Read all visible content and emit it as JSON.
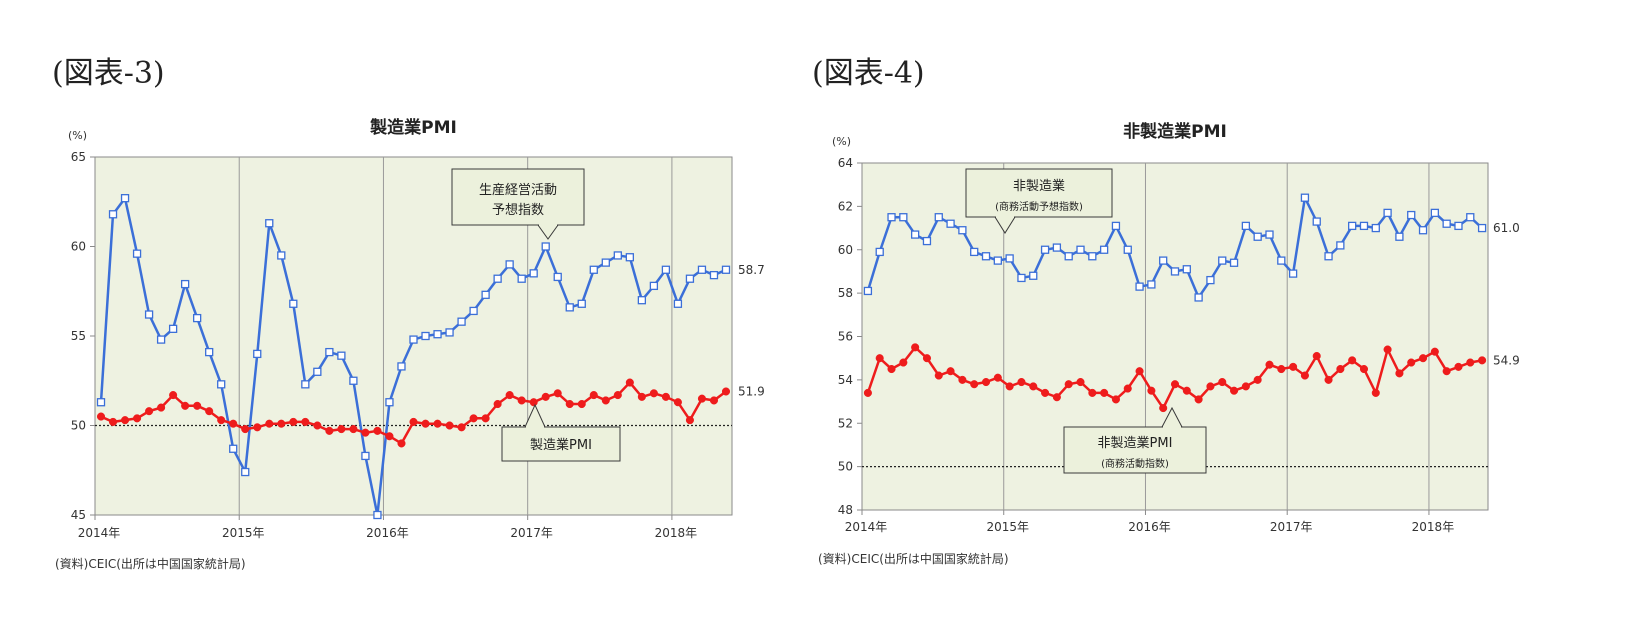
{
  "figures": [
    {
      "label": "(図表-3)",
      "source": "(資料)CEIC(出所は中国国家統計局)",
      "unit": "(%)",
      "end_labels": [
        "58.7",
        "51.9"
      ],
      "callouts": [
        [
          "生産経営活動",
          "予想指数"
        ],
        [
          "製造業PMI"
        ]
      ]
    },
    {
      "label": "(図表-4)",
      "source": "(資料)CEIC(出所は中国国家統計局)",
      "unit": "(%)",
      "end_labels": [
        "61.0",
        "54.9"
      ],
      "callouts": [
        [
          "非製造業",
          "(商務活動予想指数)"
        ],
        [
          "非製造業PMI",
          "(商務活動指数)"
        ]
      ]
    }
  ],
  "chart_data": [
    {
      "type": "line",
      "title": "製造業PMI",
      "ylim": [
        45,
        65
      ],
      "yticks": [
        45,
        50,
        55,
        60,
        65
      ],
      "x_start": "2014-01",
      "x_tick_labels": [
        "2014年",
        "2015年",
        "2016年",
        "2017年",
        "2018年"
      ],
      "reference_line": 50,
      "grid": "vertical lines at each January",
      "series": [
        {
          "name": "生産経営活動予想指数",
          "color": "#3b6fd8",
          "marker": "square",
          "values": [
            51.3,
            61.8,
            62.7,
            59.6,
            56.2,
            54.8,
            55.4,
            57.9,
            56.0,
            54.1,
            52.3,
            48.7,
            47.4,
            54.0,
            61.3,
            59.5,
            56.8,
            52.3,
            53.0,
            54.1,
            53.9,
            52.5,
            48.3,
            44.8,
            51.3,
            53.3,
            54.8,
            55.0,
            55.1,
            55.2,
            55.8,
            56.4,
            57.3,
            58.2,
            59.0,
            58.2,
            58.5,
            60.0,
            58.3,
            56.6,
            56.8,
            58.7,
            59.1,
            59.5,
            59.4,
            57.0,
            57.8,
            58.7,
            56.8,
            58.2,
            58.7,
            58.4,
            58.7
          ]
        },
        {
          "name": "製造業PMI",
          "color": "#ee1c1c",
          "marker": "circle",
          "values": [
            50.5,
            50.2,
            50.3,
            50.4,
            50.8,
            51.0,
            51.7,
            51.1,
            51.1,
            50.8,
            50.3,
            50.1,
            49.8,
            49.9,
            50.1,
            50.1,
            50.2,
            50.2,
            50.0,
            49.7,
            49.8,
            49.8,
            49.6,
            49.7,
            49.4,
            49.0,
            50.2,
            50.1,
            50.1,
            50.0,
            49.9,
            50.4,
            50.4,
            51.2,
            51.7,
            51.4,
            51.3,
            51.6,
            51.8,
            51.2,
            51.2,
            51.7,
            51.4,
            51.7,
            52.4,
            51.6,
            51.8,
            51.6,
            51.3,
            50.3,
            51.5,
            51.4,
            51.9
          ]
        }
      ]
    },
    {
      "type": "line",
      "title": "非製造業PMI",
      "ylim": [
        48,
        64
      ],
      "yticks": [
        48,
        50,
        52,
        54,
        56,
        58,
        60,
        62,
        64
      ],
      "x_start": "2014-01",
      "x_tick_labels": [
        "2014年",
        "2015年",
        "2016年",
        "2017年",
        "2018年"
      ],
      "reference_line": 50,
      "grid": "vertical lines at each January",
      "series": [
        {
          "name": "非製造業(商務活動予想指数)",
          "color": "#3b6fd8",
          "marker": "square",
          "values": [
            58.1,
            59.9,
            61.5,
            61.5,
            60.7,
            60.4,
            61.5,
            61.2,
            60.9,
            59.9,
            59.7,
            59.5,
            59.6,
            58.7,
            58.8,
            60.0,
            60.1,
            59.7,
            60.0,
            59.7,
            60.0,
            61.1,
            60.0,
            58.3,
            58.4,
            59.5,
            59.0,
            59.1,
            57.8,
            58.6,
            59.5,
            59.4,
            61.1,
            60.6,
            60.7,
            59.5,
            58.9,
            62.4,
            61.3,
            59.7,
            60.2,
            61.1,
            61.1,
            61.0,
            61.7,
            60.6,
            61.6,
            60.9,
            61.7,
            61.2,
            61.1,
            61.5,
            61.0
          ]
        },
        {
          "name": "非製造業PMI(商務活動指数)",
          "color": "#ee1c1c",
          "marker": "circle",
          "values": [
            53.4,
            55.0,
            54.5,
            54.8,
            55.5,
            55.0,
            54.2,
            54.4,
            54.0,
            53.8,
            53.9,
            54.1,
            53.7,
            53.9,
            53.7,
            53.4,
            53.2,
            53.8,
            53.9,
            53.4,
            53.4,
            53.1,
            53.6,
            54.4,
            53.5,
            52.7,
            53.8,
            53.5,
            53.1,
            53.7,
            53.9,
            53.5,
            53.7,
            54.0,
            54.7,
            54.5,
            54.6,
            54.2,
            55.1,
            54.0,
            54.5,
            54.9,
            54.5,
            53.4,
            55.4,
            54.3,
            54.8,
            55.0,
            55.3,
            54.4,
            54.6,
            54.8,
            54.9
          ]
        }
      ]
    }
  ]
}
